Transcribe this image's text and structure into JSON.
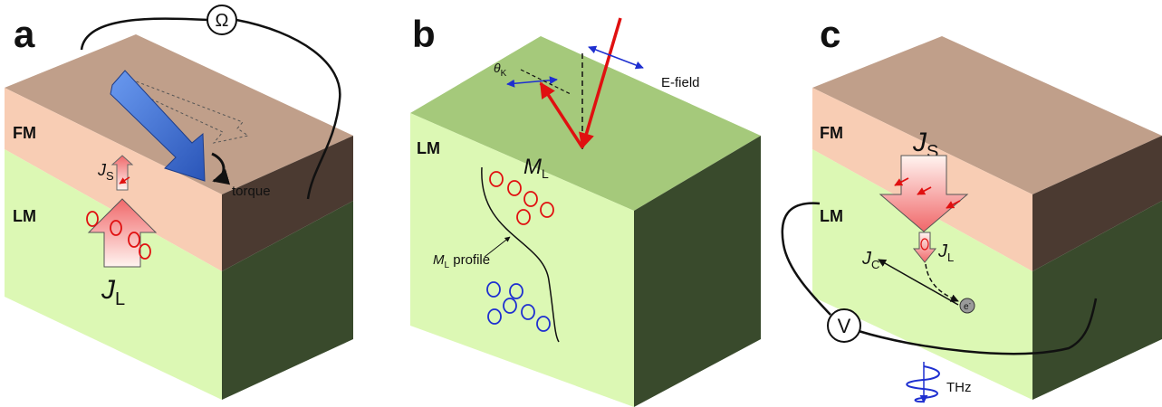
{
  "panels": {
    "a": {
      "label": "a",
      "fm": "FM",
      "lm": "LM",
      "meter": "Ω",
      "spin_current": {
        "symbol": "J",
        "sub": "S"
      },
      "current": {
        "symbol": "J",
        "sub": "L"
      },
      "torque": "torque"
    },
    "b": {
      "label": "b",
      "lm": "LM",
      "kerr_angle": {
        "symbol": "θ",
        "sub": "K"
      },
      "efield": "E-field",
      "magnetization": {
        "symbol": "M",
        "sub": "L"
      },
      "profile": {
        "symbol": "M",
        "sub": "L",
        "text": " profile"
      }
    },
    "c": {
      "label": "c",
      "fm": "FM",
      "lm": "LM",
      "spin_current": {
        "symbol": "J",
        "sub": "S"
      },
      "orbital_current": {
        "symbol": "J",
        "sub": "L"
      },
      "charge_current": {
        "symbol": "J",
        "sub": "C"
      },
      "electron": {
        "symbol": "e",
        "sup": "-"
      },
      "meter": "V",
      "emission": "THz"
    }
  }
}
